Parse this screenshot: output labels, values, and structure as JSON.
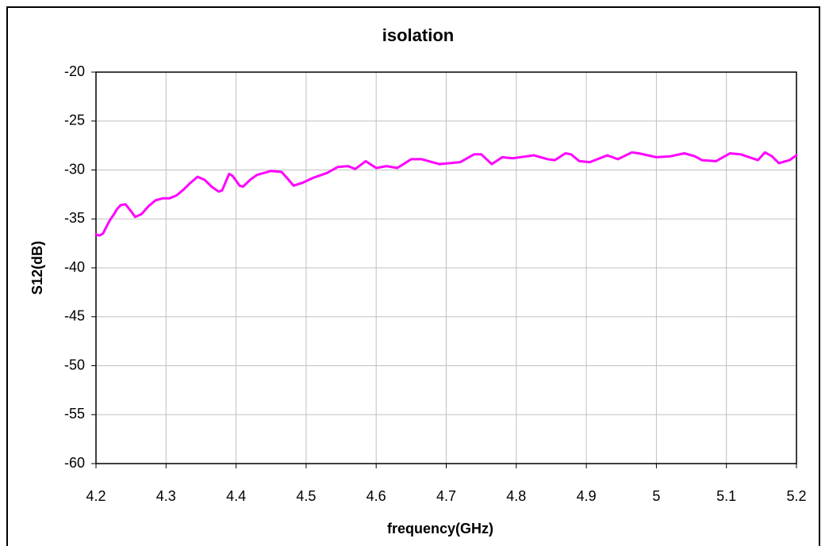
{
  "chart_data": {
    "type": "line",
    "title": "isolation",
    "x_label": "frequency(GHz)",
    "y_label": "S12(dB)",
    "xlim": [
      4.2,
      5.2
    ],
    "ylim": [
      -60,
      -20
    ],
    "xticks": [
      4.2,
      4.3,
      4.4,
      4.5,
      4.6,
      4.7,
      4.8,
      4.9,
      5,
      5.1,
      5.2
    ],
    "yticks": [
      -20,
      -25,
      -30,
      -35,
      -40,
      -45,
      -50,
      -55,
      -60
    ],
    "grid": true,
    "series": [
      {
        "color": "#ff00ff",
        "x": [
          4.2,
          4.205,
          4.21,
          4.215,
          4.22,
          4.225,
          4.23,
          4.235,
          4.242,
          4.25,
          4.256,
          4.265,
          4.275,
          4.285,
          4.295,
          4.305,
          4.315,
          4.325,
          4.335,
          4.345,
          4.355,
          4.365,
          4.375,
          4.38,
          4.39,
          4.395,
          4.405,
          4.41,
          4.42,
          4.43,
          4.44,
          4.45,
          4.465,
          4.475,
          4.482,
          4.495,
          4.51,
          4.53,
          4.545,
          4.56,
          4.57,
          4.585,
          4.6,
          4.615,
          4.63,
          4.65,
          4.665,
          4.69,
          4.705,
          4.72,
          4.74,
          4.75,
          4.765,
          4.78,
          4.795,
          4.825,
          4.845,
          4.855,
          4.87,
          4.878,
          4.89,
          4.905,
          4.93,
          4.945,
          4.965,
          4.975,
          5.0,
          5.02,
          5.04,
          5.055,
          5.065,
          5.085,
          5.105,
          5.12,
          5.145,
          5.155,
          5.165,
          5.175,
          5.19,
          5.2
        ],
        "values": [
          -36.6,
          -36.7,
          -36.5,
          -35.8,
          -35.1,
          -34.6,
          -34.0,
          -33.6,
          -33.5,
          -34.2,
          -34.8,
          -34.5,
          -33.7,
          -33.1,
          -32.9,
          -32.9,
          -32.6,
          -32.0,
          -31.3,
          -30.7,
          -31.0,
          -31.7,
          -32.2,
          -32.1,
          -30.4,
          -30.6,
          -31.6,
          -31.7,
          -31.0,
          -30.5,
          -30.3,
          -30.1,
          -30.2,
          -31.0,
          -31.6,
          -31.3,
          -30.8,
          -30.3,
          -29.7,
          -29.6,
          -29.9,
          -29.1,
          -29.8,
          -29.6,
          -29.8,
          -28.9,
          -28.9,
          -29.4,
          -29.3,
          -29.2,
          -28.4,
          -28.4,
          -29.4,
          -28.7,
          -28.8,
          -28.5,
          -28.9,
          -29.0,
          -28.3,
          -28.4,
          -29.1,
          -29.2,
          -28.5,
          -28.9,
          -28.2,
          -28.3,
          -28.7,
          -28.6,
          -28.3,
          -28.6,
          -29.0,
          -29.1,
          -28.3,
          -28.4,
          -29.0,
          -28.2,
          -28.6,
          -29.3,
          -29.0,
          -28.5
        ]
      }
    ]
  }
}
